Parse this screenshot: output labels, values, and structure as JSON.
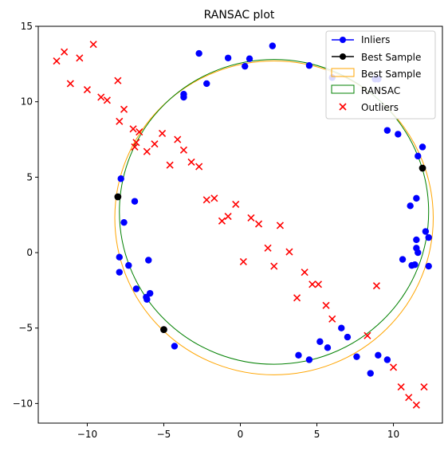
{
  "chart_data": {
    "type": "scatter",
    "title": "RANSAC plot",
    "xlabel": "",
    "ylabel": "",
    "xlim": [
      -13.2,
      13.2
    ],
    "ylim": [
      -11.3,
      15
    ],
    "xticks": [
      -10,
      -5,
      0,
      5,
      10
    ],
    "yticks": [
      -10,
      -5,
      0,
      5,
      10,
      15
    ],
    "grid": false,
    "legend_position": "top-right",
    "legend": [
      "Inliers",
      "Best Sample",
      "Best Sample",
      "RANSAC",
      "Outliers"
    ],
    "colors": {
      "inliers": "#0000ff",
      "best_sample": "#000000",
      "best_circle": "#ffa500",
      "ransac_circle": "#008000",
      "outliers": "#ff0000"
    },
    "inliers": [
      [
        2.1,
        13.7
      ],
      [
        -2.7,
        13.2
      ],
      [
        -0.8,
        12.9
      ],
      [
        0.6,
        12.85
      ],
      [
        0.3,
        12.35
      ],
      [
        4.5,
        12.4
      ],
      [
        -2.2,
        11.2
      ],
      [
        -3.7,
        10.5
      ],
      [
        -3.7,
        10.3
      ],
      [
        6.0,
        11.6
      ],
      [
        8.8,
        11.5
      ],
      [
        9.0,
        11.5
      ],
      [
        9.6,
        8.1
      ],
      [
        10.3,
        7.85
      ],
      [
        11.9,
        7.0
      ],
      [
        11.6,
        6.4
      ],
      [
        -7.8,
        4.9
      ],
      [
        -6.9,
        3.4
      ],
      [
        -7.6,
        2.0
      ],
      [
        11.5,
        3.6
      ],
      [
        11.1,
        3.1
      ],
      [
        12.1,
        1.4
      ],
      [
        12.3,
        1.0
      ],
      [
        11.5,
        0.85
      ],
      [
        11.5,
        0.3
      ],
      [
        11.6,
        0.0
      ],
      [
        10.6,
        -0.45
      ],
      [
        11.2,
        -0.85
      ],
      [
        11.4,
        -0.8
      ],
      [
        12.3,
        -0.9
      ],
      [
        -7.9,
        -0.3
      ],
      [
        -6.0,
        -0.5
      ],
      [
        -7.9,
        -1.3
      ],
      [
        -7.3,
        -0.85
      ],
      [
        -6.8,
        -2.4
      ],
      [
        -5.9,
        -2.7
      ],
      [
        -6.1,
        -3.1
      ],
      [
        -6.15,
        -2.95
      ],
      [
        -4.3,
        -6.2
      ],
      [
        3.8,
        -6.8
      ],
      [
        4.5,
        -7.1
      ],
      [
        5.2,
        -5.9
      ],
      [
        5.7,
        -6.3
      ],
      [
        6.6,
        -5.0
      ],
      [
        7.0,
        -5.6
      ],
      [
        7.6,
        -6.9
      ],
      [
        8.5,
        -8.0
      ],
      [
        9.0,
        -6.8
      ],
      [
        9.6,
        -7.1
      ]
    ],
    "best_sample": [
      [
        -8.0,
        3.7
      ],
      [
        11.9,
        5.6
      ],
      [
        -5.0,
        -5.1
      ]
    ],
    "outliers": [
      [
        -12.0,
        12.7
      ],
      [
        -11.5,
        13.3
      ],
      [
        -10.5,
        12.9
      ],
      [
        -9.6,
        13.8
      ],
      [
        -11.1,
        11.2
      ],
      [
        -10.0,
        10.8
      ],
      [
        -8.0,
        11.4
      ],
      [
        -9.1,
        10.3
      ],
      [
        -8.7,
        10.1
      ],
      [
        -7.6,
        9.5
      ],
      [
        -7.9,
        8.7
      ],
      [
        -7.0,
        8.2
      ],
      [
        -6.6,
        8.0
      ],
      [
        -6.9,
        7.0
      ],
      [
        -6.8,
        7.3
      ],
      [
        -6.1,
        6.7
      ],
      [
        -5.6,
        7.2
      ],
      [
        -5.1,
        7.9
      ],
      [
        -4.1,
        7.5
      ],
      [
        -3.7,
        6.8
      ],
      [
        -4.6,
        5.8
      ],
      [
        -3.2,
        6.0
      ],
      [
        -2.7,
        5.7
      ],
      [
        -2.2,
        3.5
      ],
      [
        -1.7,
        3.6
      ],
      [
        -1.2,
        2.1
      ],
      [
        -0.8,
        2.4
      ],
      [
        -0.3,
        3.2
      ],
      [
        0.7,
        2.3
      ],
      [
        1.2,
        1.9
      ],
      [
        2.6,
        1.8
      ],
      [
        0.2,
        -0.6
      ],
      [
        1.8,
        0.3
      ],
      [
        2.2,
        -0.9
      ],
      [
        3.2,
        0.05
      ],
      [
        4.2,
        -1.3
      ],
      [
        4.7,
        -2.1
      ],
      [
        5.1,
        -2.1
      ],
      [
        3.7,
        -3.0
      ],
      [
        5.6,
        -3.5
      ],
      [
        6.0,
        -4.4
      ],
      [
        8.3,
        -5.5
      ],
      [
        8.9,
        -2.2
      ],
      [
        10.0,
        -7.6
      ],
      [
        10.5,
        -8.9
      ],
      [
        11.0,
        -9.6
      ],
      [
        11.5,
        -10.1
      ],
      [
        12.0,
        -8.9
      ]
    ],
    "ransac_circle": {
      "cx": 2.2,
      "cy": 2.7,
      "r": 10.1
    },
    "best_circle": {
      "cx": 2.2,
      "cy": 2.3,
      "r": 10.4
    }
  }
}
